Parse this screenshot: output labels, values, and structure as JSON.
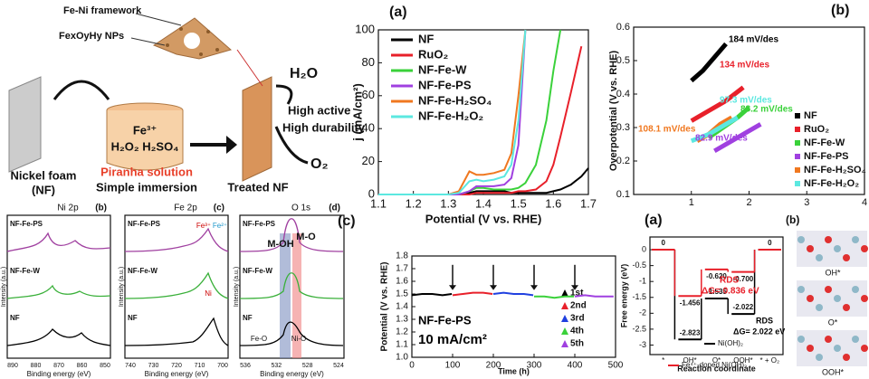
{
  "schematic": {
    "framework": "Fe-Ni framework",
    "nps": "FexOyHy NPs",
    "water": "H₂O",
    "active": "High active",
    "durability": "High durability",
    "oxygen": "O₂",
    "foam": "Nickel foam",
    "foam_abbr": "(NF)",
    "solution": "Piranha solution",
    "immersion": "Simple immersion",
    "treated": "Treated NF",
    "iron_ion": "Fe³⁺",
    "acids": "H₂O₂ H₂SO₄"
  },
  "xps": {
    "panels": [
      {
        "title": "Ni 2p",
        "label": "(b)",
        "xticks": [
          "890",
          "880",
          "870",
          "860",
          "850"
        ],
        "traces": [
          "NF-Fe-PS",
          "NF-Fe-W",
          "NF"
        ]
      },
      {
        "title": "Fe 2p",
        "label": "(c)",
        "xticks": [
          "740",
          "730",
          "720",
          "710",
          "700"
        ],
        "traces": [
          "NF-Fe-PS",
          "NF-Fe-W",
          "NF"
        ]
      },
      {
        "title": "O 1s",
        "label": "(d)",
        "xticks": [
          "536",
          "532",
          "528",
          "524"
        ],
        "traces": [
          "NF-Fe-PS",
          "NF-Fe-W",
          "NF"
        ]
      }
    ],
    "ylabel": "Intensity (a.u.)",
    "xlabel": "Binding energy (eV)",
    "o1s_tags": [
      "M-OH",
      "M-O",
      "Fe-O",
      "Ni-O"
    ],
    "fe_tags": [
      "Fe³⁺",
      "Fe²⁺",
      "Ni"
    ]
  },
  "chart_data": [
    {
      "type": "line",
      "label": "(a)",
      "xlabel": "Potential (V vs. RHE)",
      "ylabel": "j (mA/cm²)",
      "x": [
        1.1,
        1.2,
        1.3,
        1.33,
        1.36,
        1.38,
        1.4,
        1.43,
        1.46,
        1.48,
        1.5,
        1.52,
        1.55,
        1.58,
        1.6,
        1.62,
        1.65,
        1.68,
        1.7
      ],
      "xlim": [
        1.1,
        1.7
      ],
      "xticks": [
        1.1,
        1.2,
        1.3,
        1.4,
        1.5,
        1.6,
        1.7
      ],
      "ylim": [
        0,
        100
      ],
      "yticks": [
        0,
        20,
        40,
        60,
        80,
        100
      ],
      "series": [
        {
          "name": "NF",
          "color": "#000000",
          "values": [
            0,
            0,
            0,
            0,
            1,
            2,
            2,
            2,
            2,
            1,
            1,
            1,
            1,
            1,
            2,
            3,
            6,
            11,
            16
          ]
        },
        {
          "name": "RuO₂",
          "color": "#e8202a",
          "values": [
            0,
            0,
            0,
            0,
            0,
            1,
            1,
            1,
            1,
            1,
            2,
            2,
            3,
            8,
            18,
            35,
            62,
            90,
            null
          ]
        },
        {
          "name": "NF-Fe-W",
          "color": "#3ad13a",
          "values": [
            0,
            0,
            0,
            0,
            2,
            4,
            4,
            3,
            3,
            3,
            4,
            7,
            18,
            45,
            75,
            100,
            null,
            null,
            null
          ]
        },
        {
          "name": "NF-Fe-PS",
          "color": "#a040e0",
          "values": [
            0,
            0,
            0,
            0,
            2,
            5,
            5,
            5,
            6,
            10,
            30,
            100,
            null,
            null,
            null,
            null,
            null,
            null,
            null
          ]
        },
        {
          "name": "NF-Fe-H₂SO₄",
          "color": "#f07820",
          "values": [
            0,
            0,
            0,
            2,
            14,
            12,
            12,
            13,
            15,
            25,
            60,
            100,
            null,
            null,
            null,
            null,
            null,
            null,
            null
          ]
        },
        {
          "name": "NF-Fe-H₂O₂",
          "color": "#5ce8e0",
          "values": [
            0,
            0,
            0,
            1,
            8,
            9,
            8,
            9,
            11,
            18,
            45,
            100,
            null,
            null,
            null,
            null,
            null,
            null,
            null
          ]
        }
      ]
    },
    {
      "type": "line",
      "label": "(b)",
      "ylabel": "Overpotential (V vs. RHE)",
      "xlim": [
        0,
        4
      ],
      "xticks": [
        1,
        2,
        3,
        4
      ],
      "ylim": [
        0.1,
        0.6
      ],
      "yticks": [
        {
          "value": 0.1,
          "label": "0.1"
        },
        {
          "value": 0.2,
          "label": "0.2"
        },
        {
          "value": 0.3,
          "label": "0.3"
        },
        {
          "value": 0.4,
          "label": "0.4"
        },
        {
          "value": 0.5,
          "label": "0.5"
        },
        {
          "value": 0.6,
          "label": "0.6"
        }
      ],
      "series": [
        {
          "name": "NF",
          "color": "#000000",
          "x": [
            1.0,
            1.2,
            1.4,
            1.6
          ],
          "values": [
            0.44,
            0.47,
            0.51,
            0.55
          ]
        },
        {
          "name": "RuO₂",
          "color": "#e8202a",
          "x": [
            1.0,
            1.3,
            1.6,
            1.9
          ],
          "values": [
            0.32,
            0.35,
            0.38,
            0.42
          ]
        },
        {
          "name": "NF-Fe-W",
          "color": "#3ad13a",
          "x": [
            1.3,
            1.55,
            1.8,
            2.0
          ],
          "values": [
            0.27,
            0.3,
            0.33,
            0.36
          ]
        },
        {
          "name": "NF-Fe-PS",
          "color": "#a040e0",
          "x": [
            1.4,
            1.7,
            2.0,
            2.2
          ],
          "values": [
            0.23,
            0.26,
            0.29,
            0.31
          ]
        },
        {
          "name": "NF-Fe-H₂SO₄",
          "color": "#f07820",
          "x": [
            1.1,
            1.3,
            1.5,
            1.7
          ],
          "values": [
            0.26,
            0.28,
            0.31,
            0.33
          ]
        },
        {
          "name": "NF-Fe-H₂O₂",
          "color": "#5ce8e0",
          "x": [
            1.0,
            1.3,
            1.6,
            1.8
          ],
          "values": [
            0.26,
            0.28,
            0.31,
            0.33
          ]
        }
      ],
      "annotations": [
        "184 mV/des",
        "134 mV/des",
        "97.3 mV/des",
        "88.2 mV/des",
        "108.1 mV/des",
        "82.9 mV/des"
      ]
    },
    {
      "type": "line",
      "label": "(c)",
      "xlabel": "Time (h)",
      "ylabel": "Potential (V vs. RHE)",
      "xlim": [
        0,
        500
      ],
      "xticks": [
        0,
        100,
        200,
        300,
        400,
        500
      ],
      "ylim": [
        1.0,
        1.8
      ],
      "yticks": [
        {
          "value": 1.0,
          "label": "1.0"
        },
        1.1,
        1.2,
        1.3,
        1.4,
        1.5,
        1.6,
        1.7,
        {
          "value": 1.8,
          "label": "1.8"
        }
      ],
      "series": [
        {
          "name": "1st",
          "color": "#000000",
          "x": [
            0,
            25,
            50,
            75,
            98
          ],
          "values": [
            1.49,
            1.5,
            1.5,
            1.49,
            1.5
          ]
        },
        {
          "name": "2nd",
          "color": "#e8202a",
          "x": [
            100,
            125,
            150,
            175,
            198
          ],
          "values": [
            1.49,
            1.5,
            1.51,
            1.51,
            1.5
          ]
        },
        {
          "name": "3rd",
          "color": "#2040e0",
          "x": [
            200,
            225,
            250,
            275,
            298
          ],
          "values": [
            1.5,
            1.51,
            1.5,
            1.5,
            1.49
          ]
        },
        {
          "name": "4th",
          "color": "#3ad13a",
          "x": [
            300,
            325,
            350,
            375,
            398
          ],
          "values": [
            1.48,
            1.48,
            1.47,
            1.48,
            1.48
          ]
        },
        {
          "name": "5th",
          "color": "#a040e0",
          "x": [
            400,
            425,
            450,
            475,
            495
          ],
          "values": [
            1.48,
            1.49,
            1.48,
            1.48,
            1.48
          ]
        }
      ],
      "annotations": [
        "NF-Fe-PS",
        "10 mA/cm²"
      ]
    },
    {
      "type": "energy",
      "label": "(a)",
      "xlabel": "Reaction coordinate",
      "ylabel": "Free energy (eV)",
      "categories": [
        "*",
        "OH*",
        "O*",
        "OOH*",
        "* + O₂"
      ],
      "ylim": [
        -3.3,
        0.4
      ],
      "yticks": [
        0.0,
        -0.5,
        -1.0,
        -1.5,
        -2.0,
        -2.5,
        -3.0
      ],
      "series": [
        {
          "name": "Ni(OH)₂",
          "color": "#000000",
          "values": [
            0,
            -2.823,
            -1.535,
            -2.022,
            0
          ],
          "value_labels": [
            null,
            "-2.823",
            "-1.535",
            "-2.022",
            null
          ]
        },
        {
          "name": "Fe⁴⁺-doped Ni(OH)₂",
          "color": "#e8202a",
          "values": [
            0,
            -1.456,
            -0.62,
            -0.7,
            0
          ],
          "value_labels": [
            "0",
            "-1.456",
            "-0.620",
            "-0.700",
            "0"
          ]
        }
      ],
      "annotations": [
        "RDS",
        "ΔG= 0.836 eV",
        "RDS",
        "ΔG= 2.022 eV"
      ]
    }
  ],
  "structures": {
    "label": "(b)",
    "sites": [
      "OH*",
      "O*",
      "OOH*"
    ]
  }
}
